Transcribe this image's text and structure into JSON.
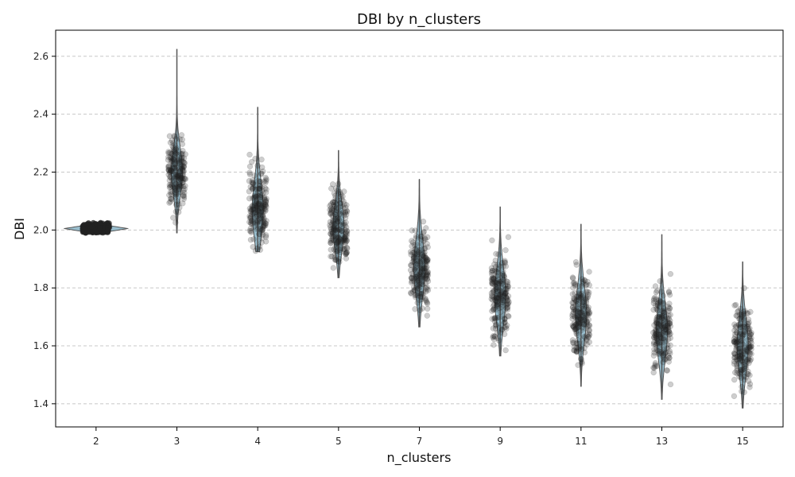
{
  "chart_data": {
    "type": "violin",
    "title": "DBI by n_clusters",
    "xlabel": "n_clusters",
    "ylabel": "DBI",
    "categories": [
      "2",
      "3",
      "4",
      "5",
      "7",
      "9",
      "11",
      "13",
      "15"
    ],
    "ylim": [
      1.32,
      2.69
    ],
    "yticks": [
      1.4,
      1.6,
      1.8,
      2.0,
      2.2,
      2.4,
      2.6
    ],
    "ytick_labels": [
      "1.4",
      "1.6",
      "1.8",
      "2.0",
      "2.2",
      "2.4",
      "2.6"
    ],
    "grid": {
      "y": true,
      "x": false,
      "style": "dashed"
    },
    "colors": {
      "violin_fill": "#8fb8c9",
      "violin_edge": "#444444",
      "points": "#222222"
    },
    "groups": [
      {
        "category": "2",
        "min": 1.99,
        "max": 2.025,
        "center": 2.005,
        "spread": 0.012,
        "points": 200
      },
      {
        "category": "3",
        "min": 1.99,
        "max": 2.625,
        "center": 2.2,
        "spread": 0.06,
        "points": 200
      },
      {
        "category": "4",
        "min": 1.925,
        "max": 2.425,
        "center": 2.07,
        "spread": 0.07,
        "points": 200
      },
      {
        "category": "5",
        "min": 1.835,
        "max": 2.275,
        "center": 2.01,
        "spread": 0.06,
        "points": 200
      },
      {
        "category": "7",
        "min": 1.665,
        "max": 2.175,
        "center": 1.87,
        "spread": 0.07,
        "points": 200
      },
      {
        "category": "9",
        "min": 1.565,
        "max": 2.08,
        "center": 1.77,
        "spread": 0.07,
        "points": 200
      },
      {
        "category": "11",
        "min": 1.46,
        "max": 2.02,
        "center": 1.71,
        "spread": 0.07,
        "points": 200
      },
      {
        "category": "13",
        "min": 1.415,
        "max": 1.985,
        "center": 1.65,
        "spread": 0.07,
        "points": 200
      },
      {
        "category": "15",
        "min": 1.385,
        "max": 1.89,
        "center": 1.6,
        "spread": 0.07,
        "points": 200
      }
    ]
  }
}
